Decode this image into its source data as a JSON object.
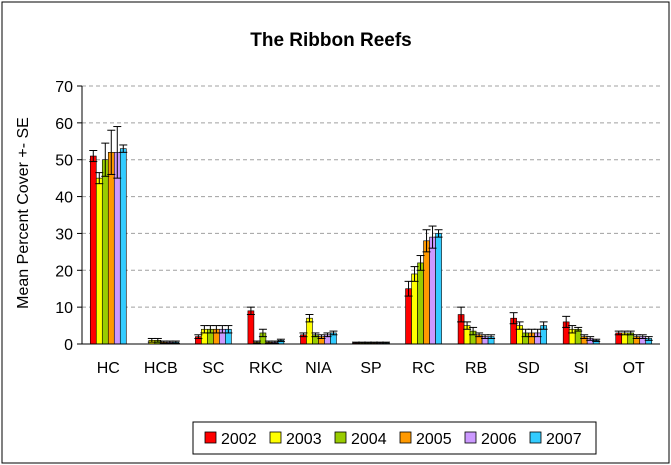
{
  "chart_data": {
    "type": "bar",
    "title": "The Ribbon Reefs",
    "xlabel": "",
    "ylabel": "Mean Percent Cover +- SE",
    "ylim": [
      0,
      70
    ],
    "yticks": [
      0,
      10,
      20,
      30,
      40,
      50,
      60,
      70
    ],
    "grid": "horizontal dashed",
    "legend_position": "bottom",
    "categories": [
      "HC",
      "HCB",
      "SC",
      "RKC",
      "NIA",
      "SP",
      "RC",
      "RB",
      "SD",
      "SI",
      "OT"
    ],
    "series": [
      {
        "name": "2002",
        "color": "#ff0000",
        "values": [
          51,
          0,
          2,
          9,
          2.5,
          0.3,
          15,
          8,
          7,
          6,
          3
        ],
        "errors": [
          1.5,
          0,
          0.5,
          1,
          0.5,
          0.2,
          2,
          2,
          1.5,
          1.5,
          0.5
        ]
      },
      {
        "name": "2003",
        "color": "#ffff00",
        "values": [
          45,
          1,
          4,
          0.5,
          7,
          0.3,
          19,
          5,
          5,
          4,
          3
        ],
        "errors": [
          1.5,
          0.5,
          1,
          0.3,
          1,
          0.2,
          2,
          1,
          1,
          1,
          0.5
        ]
      },
      {
        "name": "2004",
        "color": "#99cc00",
        "values": [
          50,
          1,
          4,
          3,
          2.5,
          0.3,
          22,
          3.5,
          3,
          4,
          3
        ],
        "errors": [
          4.5,
          0.5,
          1,
          1,
          0.5,
          0.2,
          2,
          1,
          1,
          0.5,
          0.5
        ]
      },
      {
        "name": "2005",
        "color": "#ff9900",
        "values": [
          52,
          0.5,
          4,
          0.5,
          2,
          0.3,
          28,
          2.5,
          3,
          2,
          2
        ],
        "errors": [
          6,
          0.3,
          1,
          0.3,
          0.5,
          0.2,
          3,
          0.5,
          1,
          0.5,
          0.5
        ]
      },
      {
        "name": "2006",
        "color": "#cc99ff",
        "values": [
          52,
          0.5,
          4,
          0.5,
          2.5,
          0.3,
          29,
          2,
          3,
          1.5,
          2
        ],
        "errors": [
          7,
          0.3,
          1,
          0.3,
          0.5,
          0.2,
          3,
          0.5,
          1,
          0.5,
          0.5
        ]
      },
      {
        "name": "2007",
        "color": "#33ccff",
        "values": [
          53,
          0.5,
          4,
          1,
          3,
          0.3,
          30,
          2,
          5,
          1,
          1.5
        ],
        "errors": [
          1,
          0.3,
          1,
          0.3,
          0.5,
          0.2,
          1,
          0.5,
          1,
          0.3,
          0.5
        ]
      }
    ]
  }
}
